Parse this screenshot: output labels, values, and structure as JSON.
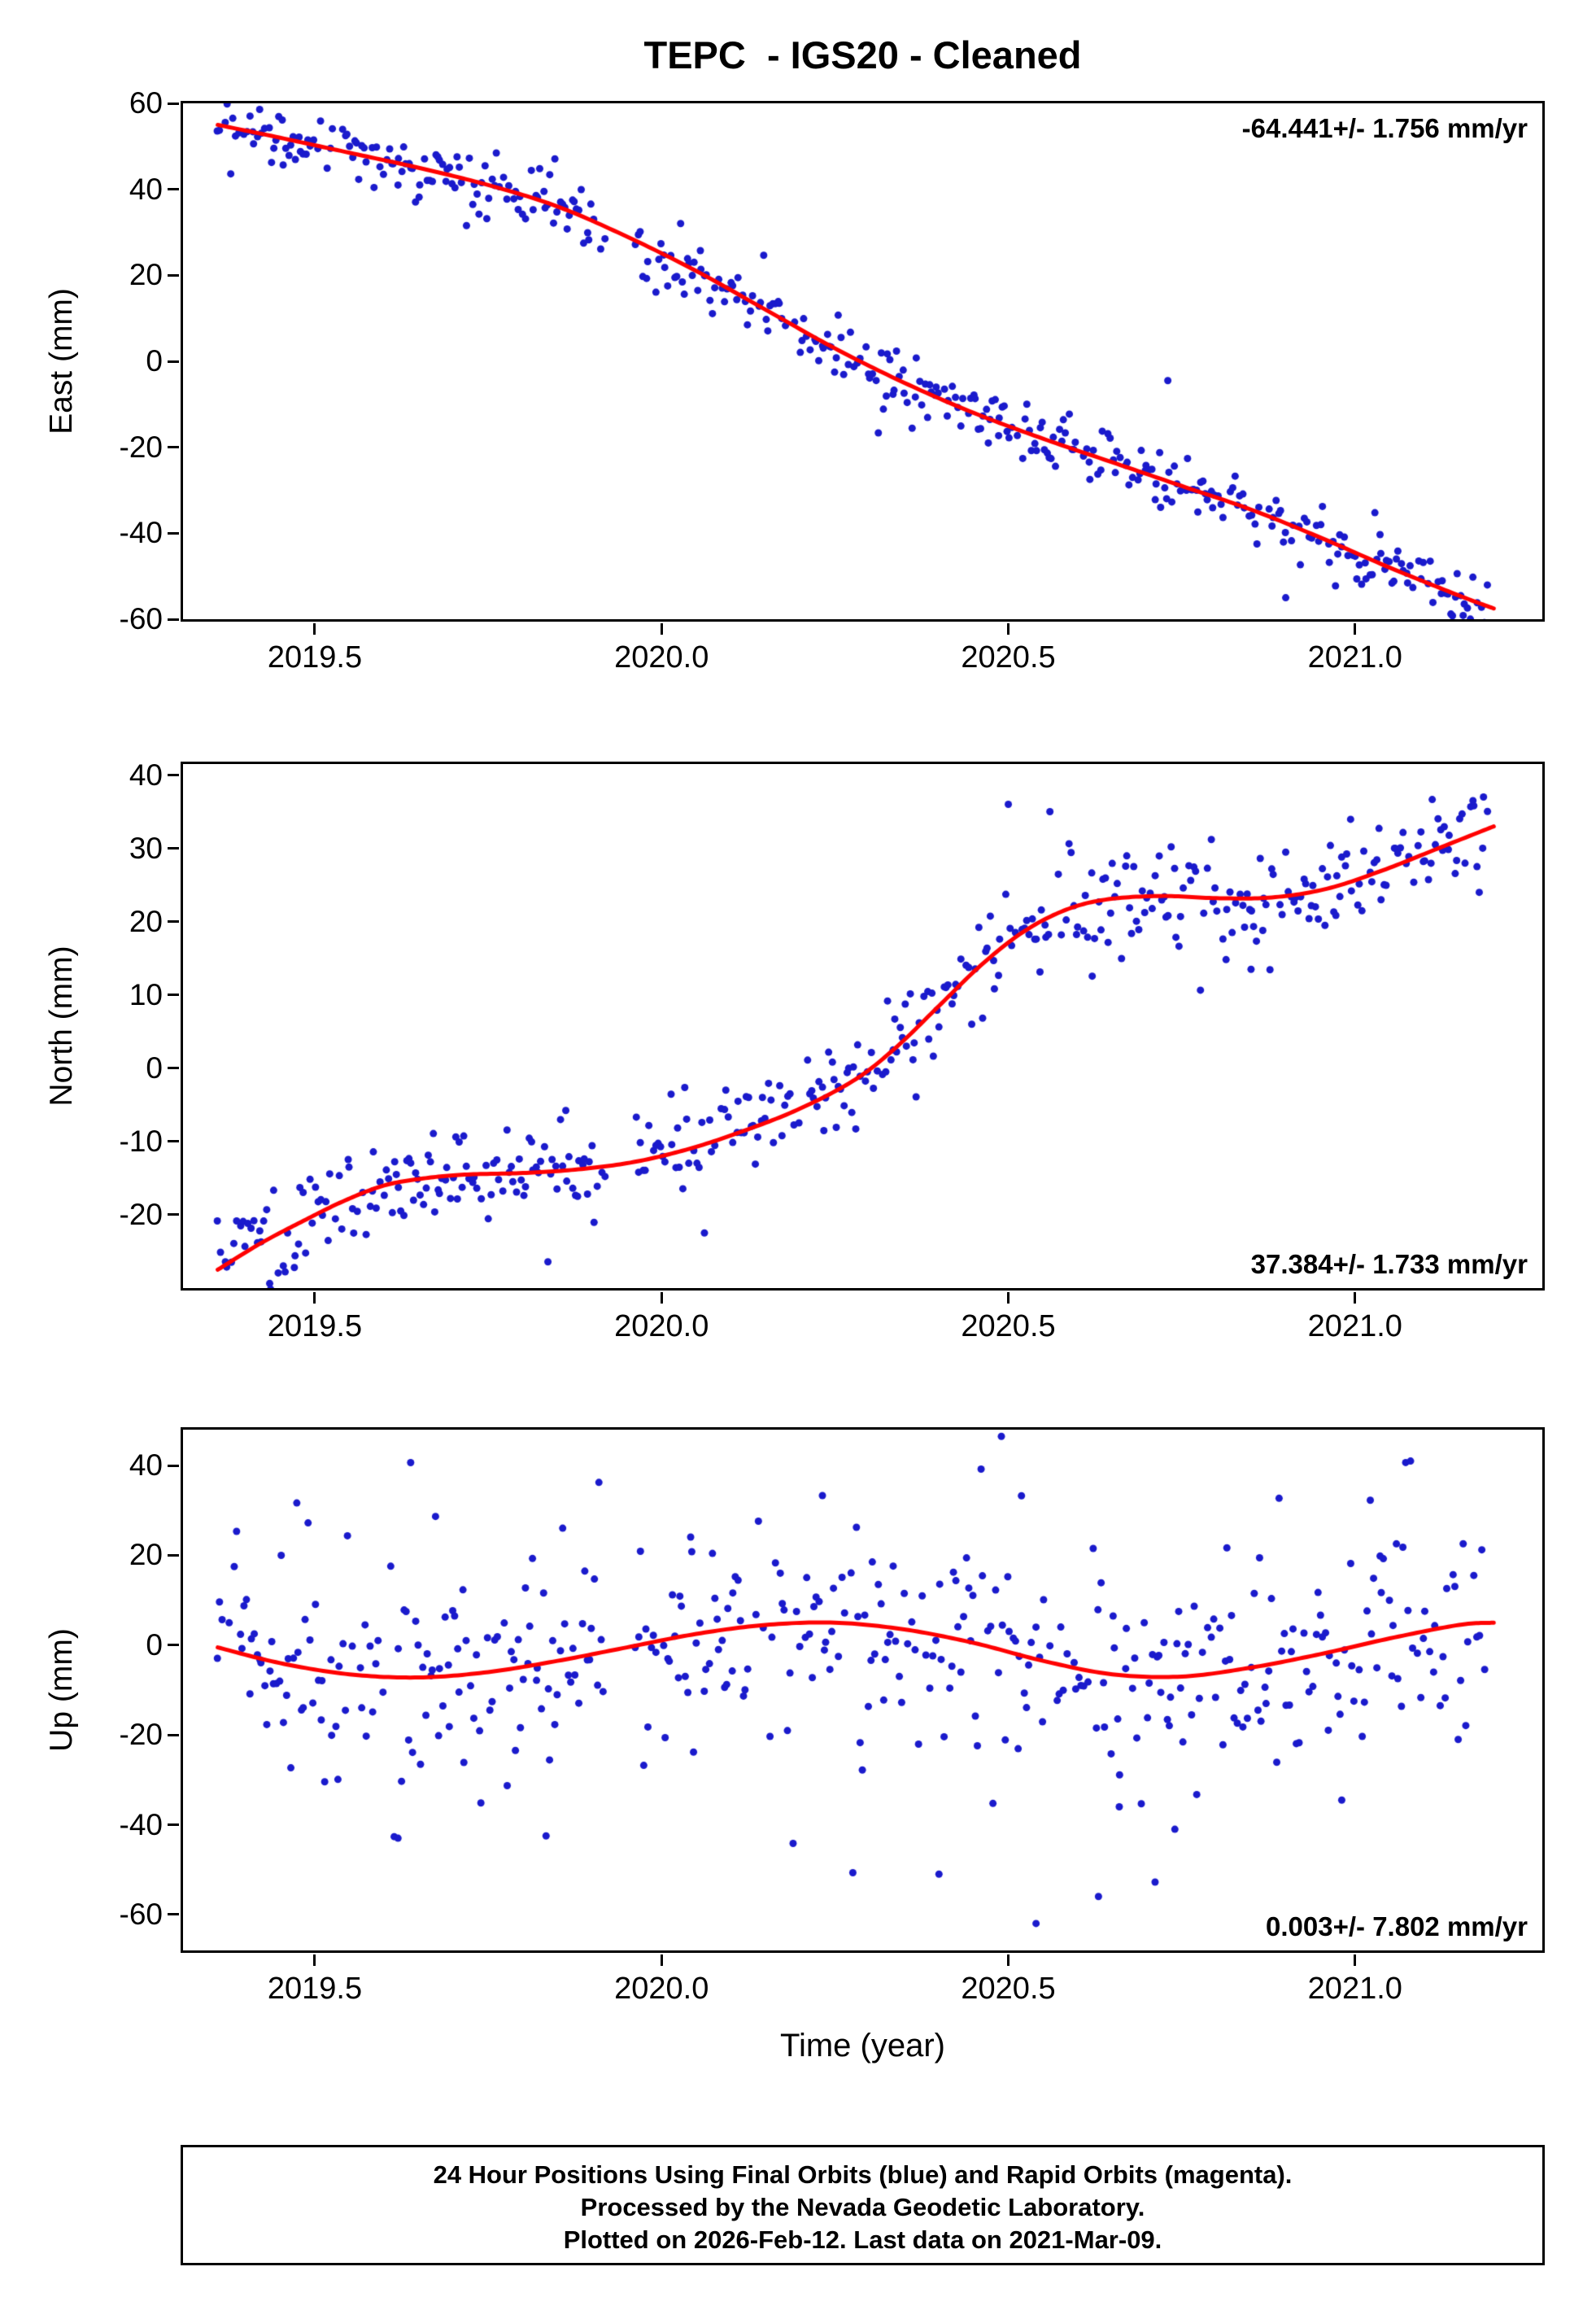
{
  "title": "TEPC  - IGS20 - Cleaned",
  "xlabel": "Time (year)",
  "footer": {
    "line1": "24 Hour Positions Using Final Orbits (blue) and Rapid Orbits (magenta).",
    "line2": "Processed by the Nevada Geodetic Laboratory.",
    "line3": "Plotted on 2026-Feb-12. Last data on 2021-Mar-09."
  },
  "colors": {
    "points": "#1a1acc",
    "trend": "#ff0000",
    "axis": "#000000"
  },
  "chart_data": [
    {
      "type": "scatter",
      "panel": "East",
      "ylabel": "East (mm)",
      "annotation": "-64.441+/- 1.756 mm/yr",
      "annotation_position": "top-right",
      "rate_mm_per_yr": -64.441,
      "rate_sigma": 1.756,
      "xlim": [
        2019.31,
        2021.27
      ],
      "ylim": [
        -60,
        60
      ],
      "yticks": [
        60,
        40,
        20,
        0,
        -20,
        -40,
        -60
      ],
      "ytick_labels": [
        "60",
        "40",
        "20",
        "0",
        "-20",
        "-40",
        "-60"
      ],
      "xticks": [
        2019.5,
        2020.0,
        2020.5,
        2021.0
      ],
      "xtick_labels": [
        "2019.5",
        "2020.0",
        "2020.5",
        "2021.0"
      ],
      "grid": false,
      "trend": [
        [
          2019.36,
          55
        ],
        [
          2019.45,
          52
        ],
        [
          2019.55,
          48.5
        ],
        [
          2019.65,
          45
        ],
        [
          2019.75,
          41
        ],
        [
          2019.85,
          36
        ],
        [
          2019.95,
          29
        ],
        [
          2020.05,
          21
        ],
        [
          2020.15,
          12
        ],
        [
          2020.25,
          3
        ],
        [
          2020.35,
          -5
        ],
        [
          2020.45,
          -12
        ],
        [
          2020.55,
          -18
        ],
        [
          2020.65,
          -23.5
        ],
        [
          2020.75,
          -29
        ],
        [
          2020.85,
          -34.5
        ],
        [
          2020.95,
          -41
        ],
        [
          2021.05,
          -48
        ],
        [
          2021.15,
          -54.5
        ],
        [
          2021.2,
          -57.5
        ]
      ],
      "extra_points": [
        [
          2020.73,
          -4.5
        ],
        [
          2020.9,
          -55
        ],
        [
          2019.62,
          41
        ]
      ],
      "scatter_sim": {
        "n": 520,
        "x_start": 2019.36,
        "x_end": 2021.19,
        "noise_sd": 3.3,
        "noise_sd2": 6.5,
        "mix": 0.1,
        "dropout": 0.12,
        "seed": 101,
        "gaps": [
          [
            2019.92,
            2019.962
          ]
        ]
      }
    },
    {
      "type": "scatter",
      "panel": "North",
      "ylabel": "North (mm)",
      "annotation": "37.384+/- 1.733 mm/yr",
      "annotation_position": "bottom-right",
      "rate_mm_per_yr": 37.384,
      "rate_sigma": 1.733,
      "xlim": [
        2019.31,
        2021.27
      ],
      "ylim": [
        -30,
        41.5
      ],
      "yticks": [
        40,
        30,
        20,
        10,
        0,
        -10,
        -20
      ],
      "ytick_labels": [
        "40",
        "30",
        "20",
        "10",
        "0",
        "-10",
        "-20"
      ],
      "xticks": [
        2019.5,
        2020.0,
        2020.5,
        2021.0
      ],
      "xtick_labels": [
        "2019.5",
        "2020.0",
        "2020.5",
        "2021.0"
      ],
      "grid": false,
      "trend": [
        [
          2019.36,
          -27.5
        ],
        [
          2019.42,
          -24
        ],
        [
          2019.48,
          -21
        ],
        [
          2019.54,
          -18.2
        ],
        [
          2019.6,
          -16
        ],
        [
          2019.66,
          -15
        ],
        [
          2019.72,
          -14.5
        ],
        [
          2019.8,
          -14.3
        ],
        [
          2019.88,
          -13.8
        ],
        [
          2019.96,
          -12.8
        ],
        [
          2020.04,
          -11
        ],
        [
          2020.12,
          -8.5
        ],
        [
          2020.2,
          -5.5
        ],
        [
          2020.28,
          -1.5
        ],
        [
          2020.34,
          3
        ],
        [
          2020.4,
          8.5
        ],
        [
          2020.46,
          14
        ],
        [
          2020.52,
          18.5
        ],
        [
          2020.58,
          21.5
        ],
        [
          2020.64,
          23
        ],
        [
          2020.72,
          23.5
        ],
        [
          2020.8,
          23.2
        ],
        [
          2020.88,
          23.3
        ],
        [
          2020.96,
          24.5
        ],
        [
          2021.04,
          27
        ],
        [
          2021.12,
          30
        ],
        [
          2021.2,
          33
        ]
      ],
      "extra_points": [
        [
          2020.5,
          36
        ],
        [
          2020.56,
          35
        ],
        [
          2020.85,
          13.5
        ],
        [
          2021.17,
          36.5
        ]
      ],
      "scatter_sim": {
        "n": 520,
        "x_start": 2019.36,
        "x_end": 2021.19,
        "noise_sd": 3.4,
        "noise_sd2": 6.5,
        "mix": 0.12,
        "dropout": 0.12,
        "seed": 202,
        "gaps": [
          [
            2019.92,
            2019.962
          ]
        ]
      }
    },
    {
      "type": "scatter",
      "panel": "Up",
      "ylabel": "Up (mm)",
      "annotation": "0.003+/- 7.802 mm/yr",
      "annotation_position": "bottom-right",
      "rate_mm_per_yr": 0.003,
      "rate_sigma": 7.802,
      "xlim": [
        2019.31,
        2021.27
      ],
      "ylim": [
        -68,
        48
      ],
      "yticks": [
        40,
        20,
        0,
        -20,
        -40,
        -60
      ],
      "ytick_labels": [
        "40",
        "20",
        "0",
        "-20",
        "-40",
        "-60"
      ],
      "xticks": [
        2019.5,
        2020.0,
        2020.5,
        2021.0
      ],
      "xtick_labels": [
        "2019.5",
        "2020.0",
        "2020.5",
        "2021.0"
      ],
      "grid": false,
      "trend": [
        [
          2019.36,
          -0.5
        ],
        [
          2019.45,
          -4
        ],
        [
          2019.55,
          -6.5
        ],
        [
          2019.65,
          -7.2
        ],
        [
          2019.75,
          -6
        ],
        [
          2019.85,
          -3.5
        ],
        [
          2019.95,
          -0.5
        ],
        [
          2020.05,
          2.5
        ],
        [
          2020.15,
          4.5
        ],
        [
          2020.25,
          5
        ],
        [
          2020.35,
          3.5
        ],
        [
          2020.45,
          0.5
        ],
        [
          2020.55,
          -3.5
        ],
        [
          2020.65,
          -6.5
        ],
        [
          2020.75,
          -7
        ],
        [
          2020.85,
          -5
        ],
        [
          2020.95,
          -2
        ],
        [
          2021.05,
          1.5
        ],
        [
          2021.15,
          4.5
        ],
        [
          2021.2,
          5
        ]
      ],
      "extra_points": [
        [
          2020.49,
          46.5
        ],
        [
          2020.4,
          -51
        ],
        [
          2020.63,
          -56
        ],
        [
          2020.54,
          -62
        ],
        [
          2019.62,
          -43
        ],
        [
          2020.66,
          -36
        ],
        [
          2021.08,
          41
        ]
      ],
      "scatter_sim": {
        "n": 520,
        "x_start": 2019.36,
        "x_end": 2021.19,
        "noise_sd": 11,
        "noise_sd2": 24,
        "mix": 0.18,
        "dropout": 0.12,
        "seed": 303,
        "gaps": [
          [
            2019.92,
            2019.962
          ]
        ]
      }
    }
  ]
}
